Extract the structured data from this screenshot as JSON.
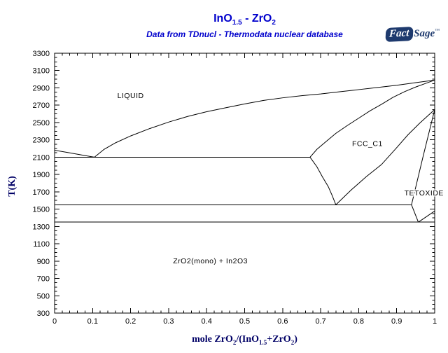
{
  "header": {
    "title_parts": [
      {
        "t": "InO"
      },
      {
        "s": "1.5"
      },
      {
        "t": " - ZrO"
      },
      {
        "s": "2"
      }
    ],
    "subtitle": "Data from TDnucl - Thermodata nuclear database",
    "title_color": "#0000CC"
  },
  "branding": {
    "fact": "Fact",
    "sage": "Sage",
    "tm": "™",
    "navy": "#1E3A6E"
  },
  "chart_data": {
    "type": "line",
    "title": "InO1.5 - ZrO2",
    "subtitle": "Data from TDnucl - Thermodata nuclear database",
    "xlabel": "mole ZrO2/(InO1.5+ZrO2)",
    "xlabel_parts": [
      {
        "t": "mole ZrO"
      },
      {
        "s": "2"
      },
      {
        "t": "/(InO"
      },
      {
        "s": "1.5"
      },
      {
        "t": "+ZrO"
      },
      {
        "s": "2"
      },
      {
        "t": ")"
      }
    ],
    "ylabel": "T(K)",
    "xlim": [
      0,
      1
    ],
    "ylim": [
      300,
      3300
    ],
    "x_ticks": [
      0,
      0.1,
      0.2,
      0.3,
      0.4,
      0.5,
      0.6,
      0.7,
      0.8,
      0.9,
      1
    ],
    "x_tick_labels": [
      "0",
      "0.1",
      "0.2",
      "0.3",
      "0.4",
      "0.5",
      "0.6",
      "0.7",
      "0.8",
      "0.9",
      "1"
    ],
    "x_minor_step": 0.02,
    "y_ticks": [
      300,
      500,
      700,
      900,
      1100,
      1300,
      1500,
      1700,
      1900,
      2100,
      2300,
      2500,
      2700,
      2900,
      3100,
      3300
    ],
    "y_tick_labels": [
      "300",
      "500",
      "700",
      "900",
      "1100",
      "1300",
      "1500",
      "1700",
      "1900",
      "2100",
      "2300",
      "2500",
      "2700",
      "2900",
      "3100",
      "3300"
    ],
    "y_minor_step": 50,
    "grid": false,
    "line_color": "#000000",
    "boundaries": [
      {
        "name": "liquidus-left",
        "points": [
          [
            0,
            2180
          ],
          [
            0.04,
            2150
          ],
          [
            0.08,
            2118
          ],
          [
            0.105,
            2100
          ]
        ]
      },
      {
        "name": "liquidus",
        "points": [
          [
            0.105,
            2100
          ],
          [
            0.13,
            2190
          ],
          [
            0.16,
            2265
          ],
          [
            0.2,
            2345
          ],
          [
            0.25,
            2430
          ],
          [
            0.3,
            2505
          ],
          [
            0.35,
            2570
          ],
          [
            0.4,
            2625
          ],
          [
            0.45,
            2670
          ],
          [
            0.5,
            2715
          ],
          [
            0.55,
            2755
          ],
          [
            0.6,
            2785
          ],
          [
            0.65,
            2810
          ],
          [
            0.7,
            2830
          ],
          [
            0.75,
            2855
          ],
          [
            0.8,
            2880
          ],
          [
            0.85,
            2905
          ],
          [
            0.9,
            2930
          ],
          [
            0.95,
            2960
          ],
          [
            1,
            2990
          ]
        ]
      },
      {
        "name": "solidus-fcc",
        "points": [
          [
            0.672,
            2100
          ],
          [
            0.69,
            2190
          ],
          [
            0.71,
            2265
          ],
          [
            0.74,
            2375
          ],
          [
            0.77,
            2465
          ],
          [
            0.8,
            2550
          ],
          [
            0.83,
            2635
          ],
          [
            0.86,
            2710
          ],
          [
            0.89,
            2790
          ],
          [
            0.92,
            2855
          ],
          [
            0.95,
            2910
          ],
          [
            0.975,
            2950
          ],
          [
            1,
            2990
          ]
        ]
      },
      {
        "name": "eutectic-2100",
        "points": [
          [
            0,
            2100
          ],
          [
            0.672,
            2100
          ]
        ]
      },
      {
        "name": "fcc-left-boundary",
        "points": [
          [
            0.672,
            2100
          ],
          [
            0.69,
            1990
          ],
          [
            0.705,
            1870
          ],
          [
            0.72,
            1760
          ],
          [
            0.73,
            1660
          ],
          [
            0.74,
            1550
          ]
        ]
      },
      {
        "name": "fcc-lower-boundary",
        "points": [
          [
            0.74,
            1550
          ],
          [
            0.78,
            1720
          ],
          [
            0.82,
            1875
          ],
          [
            0.86,
            2015
          ],
          [
            0.9,
            2210
          ],
          [
            0.93,
            2360
          ],
          [
            0.96,
            2490
          ],
          [
            1,
            2650
          ]
        ]
      },
      {
        "name": "invariant-1550",
        "points": [
          [
            0,
            1550
          ],
          [
            0.939,
            1550
          ]
        ]
      },
      {
        "name": "tetoxide-left-boundary",
        "points": [
          [
            1,
            2650
          ],
          [
            0.969,
            2100
          ],
          [
            0.939,
            1550
          ]
        ]
      },
      {
        "name": "tetoxide-bottom-left",
        "points": [
          [
            0.939,
            1550
          ],
          [
            0.957,
            1350
          ]
        ]
      },
      {
        "name": "invariant-1350",
        "points": [
          [
            0,
            1350
          ],
          [
            1,
            1350
          ]
        ]
      },
      {
        "name": "tet-mono-boundary",
        "points": [
          [
            0.957,
            1350
          ],
          [
            1,
            1478
          ]
        ]
      }
    ],
    "region_labels": [
      {
        "text": "LIQUID",
        "x": 0.2,
        "T": 2815
      },
      {
        "text": "FCC_C1",
        "x": 0.823,
        "T": 2260
      },
      {
        "text": "TETOXIDE",
        "x": 0.972,
        "T": 1690
      },
      {
        "text": "ZrO2(mono) + In2O3",
        "x": 0.41,
        "T": 905
      }
    ]
  }
}
